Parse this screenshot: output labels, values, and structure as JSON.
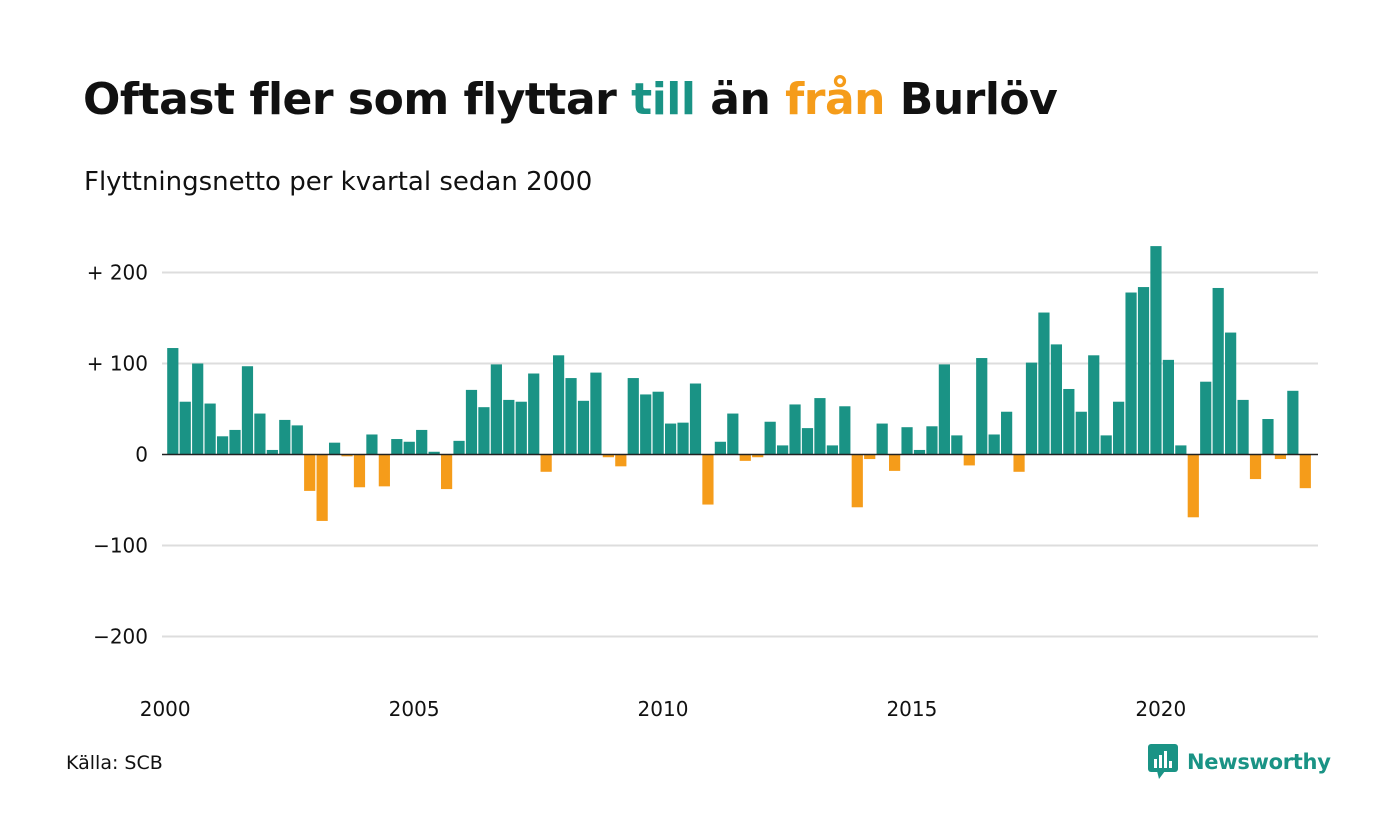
{
  "title": {
    "part1": "Oftast fler som flyttar ",
    "part2": "till",
    "part3": " än ",
    "part4": "från",
    "part5": " Burlöv"
  },
  "subtitle": "Flyttningsnetto per kvartal sedan 2000",
  "source": "Källa: SCB",
  "brand": "Newsworthy",
  "colors": {
    "positive": "#1a9385",
    "negative": "#f59c1a",
    "grid": "#dddddd",
    "zero_line": "#222222",
    "brand": "#1a9385"
  },
  "chart_data": {
    "type": "bar",
    "x_start": "2000 Q1",
    "period": "quarter",
    "values": [
      117,
      58,
      100,
      56,
      20,
      27,
      97,
      45,
      5,
      38,
      32,
      -40,
      -73,
      13,
      -2,
      -36,
      22,
      -35,
      17,
      14,
      27,
      3,
      -38,
      15,
      71,
      52,
      99,
      60,
      58,
      89,
      -19,
      109,
      84,
      59,
      90,
      -3,
      -13,
      84,
      66,
      69,
      34,
      35,
      78,
      -55,
      14,
      45,
      -7,
      -3,
      36,
      10,
      55,
      29,
      62,
      10,
      53,
      -58,
      -5,
      34,
      -18,
      30,
      5,
      31,
      99,
      21,
      -12,
      106,
      22,
      47,
      -19,
      101,
      156,
      121,
      72,
      47,
      109,
      21,
      58,
      178,
      184,
      229,
      104,
      10,
      -69,
      80,
      183,
      134,
      60,
      -27,
      39,
      -5,
      70,
      -37
    ],
    "x_tick_labels": [
      "2000",
      "2005",
      "2010",
      "2015",
      "2020"
    ],
    "y_ticks": [
      200,
      100,
      0,
      -100,
      -200
    ],
    "y_tick_labels": [
      "+ 200",
      "+ 100",
      "0",
      "−100",
      "−200"
    ],
    "ylim": [
      -235,
      240
    ],
    "xlabel": "",
    "ylabel": "",
    "grid": true,
    "legend": "none"
  }
}
